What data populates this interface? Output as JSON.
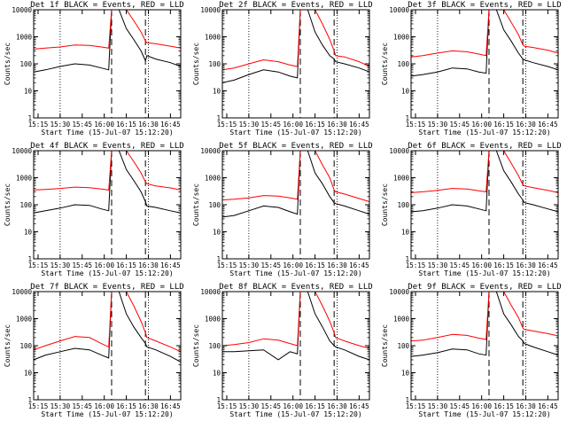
{
  "figure": {
    "title_template": "Det {n}f BLACK = Events, RED = LLD",
    "xlabel": "Start Time (15-Jul-07 15:12:20)",
    "ylabel": "Counts/sec",
    "colors": {
      "events": "#000000",
      "lld": "#ff0000",
      "axes": "#000000"
    }
  },
  "chart_data": [
    {
      "type": "line",
      "title": "Det 1f BLACK = Events, RED = LLD",
      "xlabel": "Start Time (15-Jul-07 15:12:20)",
      "ylabel": "Counts/sec",
      "yscale": "log",
      "ylim": [
        1,
        10000
      ],
      "xlim": [
        "15:12",
        "16:52"
      ],
      "xticks": [
        "15:15",
        "15:30",
        "15:45",
        "16:00",
        "16:15",
        "16:30",
        "16:45"
      ],
      "yticks": [
        "1",
        "10",
        "100",
        "1000",
        "10000"
      ],
      "dotted_lines": [
        "15:30",
        "16:30"
      ],
      "dashed_lines": [
        "16:05",
        "16:28"
      ],
      "x": [
        "15:12",
        "15:20",
        "15:30",
        "15:40",
        "15:50",
        "15:58",
        "16:03",
        "16:05",
        "16:07",
        "16:10",
        "16:15",
        "16:20",
        "16:25",
        "16:28",
        "16:29",
        "16:35",
        "16:45",
        "16:52"
      ],
      "series": [
        {
          "name": "BLACK = Events",
          "values": [
            50,
            60,
            80,
            100,
            90,
            70,
            60,
            10000,
            10000,
            10000,
            2000,
            800,
            300,
            130,
            200,
            150,
            110,
            80
          ]
        },
        {
          "name": "RED = LLD",
          "values": [
            350,
            380,
            420,
            500,
            480,
            420,
            380,
            10000,
            10000,
            10000,
            10000,
            4000,
            1500,
            700,
            600,
            550,
            450,
            380
          ]
        }
      ]
    },
    {
      "type": "line",
      "title": "Det 2f BLACK = Events, RED = LLD",
      "xlabel": "Start Time (15-Jul-07 15:12:20)",
      "ylabel": "Counts/sec",
      "yscale": "log",
      "ylim": [
        1,
        10000
      ],
      "xlim": [
        "15:12",
        "16:52"
      ],
      "xticks": [
        "15:15",
        "15:30",
        "15:45",
        "16:00",
        "16:15",
        "16:30",
        "16:45"
      ],
      "yticks": [
        "1",
        "10",
        "100",
        "1000",
        "10000"
      ],
      "dotted_lines": [
        "15:30",
        "16:30"
      ],
      "dashed_lines": [
        "16:05",
        "16:28"
      ],
      "x": [
        "15:12",
        "15:20",
        "15:30",
        "15:40",
        "15:50",
        "15:58",
        "16:03",
        "16:05",
        "16:07",
        "16:10",
        "16:15",
        "16:20",
        "16:25",
        "16:28",
        "16:29",
        "16:35",
        "16:45",
        "16:52"
      ],
      "series": [
        {
          "name": "BLACK = Events",
          "values": [
            20,
            25,
            40,
            60,
            50,
            35,
            30,
            10000,
            10000,
            10000,
            1500,
            500,
            200,
            150,
            120,
            100,
            70,
            50
          ]
        },
        {
          "name": "RED = LLD",
          "values": [
            60,
            70,
            100,
            140,
            120,
            90,
            80,
            10000,
            10000,
            10000,
            10000,
            3000,
            800,
            300,
            200,
            180,
            120,
            80
          ]
        }
      ]
    },
    {
      "type": "line",
      "title": "Det 3f BLACK = Events, RED = LLD",
      "xlabel": "Start Time (15-Jul-07 15:12:20)",
      "ylabel": "Counts/sec",
      "yscale": "log",
      "ylim": [
        1,
        10000
      ],
      "xlim": [
        "15:12",
        "16:52"
      ],
      "xticks": [
        "15:15",
        "15:30",
        "15:45",
        "16:00",
        "16:15",
        "16:30",
        "16:45"
      ],
      "yticks": [
        "1",
        "10",
        "100",
        "1000",
        "10000"
      ],
      "dotted_lines": [
        "15:30",
        "16:30"
      ],
      "dashed_lines": [
        "16:05",
        "16:28"
      ],
      "x": [
        "15:12",
        "15:20",
        "15:30",
        "15:40",
        "15:50",
        "15:58",
        "16:03",
        "16:05",
        "16:07",
        "16:10",
        "16:15",
        "16:20",
        "16:25",
        "16:28",
        "16:29",
        "16:35",
        "16:45",
        "16:52"
      ],
      "series": [
        {
          "name": "BLACK = Events",
          "values": [
            35,
            40,
            50,
            70,
            65,
            50,
            45,
            10000,
            10000,
            10000,
            1800,
            700,
            250,
            150,
            140,
            110,
            80,
            60
          ]
        },
        {
          "name": "RED = LLD",
          "values": [
            180,
            200,
            250,
            300,
            280,
            230,
            200,
            10000,
            10000,
            10000,
            10000,
            3500,
            1200,
            500,
            450,
            400,
            320,
            250
          ]
        }
      ]
    },
    {
      "type": "line",
      "title": "Det 4f BLACK = Events, RED = LLD",
      "xlabel": "Start Time (15-Jul-07 15:12:20)",
      "ylabel": "Counts/sec",
      "yscale": "log",
      "ylim": [
        1,
        10000
      ],
      "xlim": [
        "15:12",
        "16:52"
      ],
      "xticks": [
        "15:15",
        "15:30",
        "15:45",
        "16:00",
        "16:15",
        "16:30",
        "16:45"
      ],
      "yticks": [
        "1",
        "10",
        "100",
        "1000",
        "10000"
      ],
      "dotted_lines": [
        "15:30",
        "16:30"
      ],
      "dashed_lines": [
        "16:05",
        "16:28"
      ],
      "x": [
        "15:12",
        "15:20",
        "15:30",
        "15:40",
        "15:50",
        "15:58",
        "16:03",
        "16:05",
        "16:07",
        "16:10",
        "16:15",
        "16:20",
        "16:25",
        "16:28",
        "16:29",
        "16:35",
        "16:45",
        "16:52"
      ],
      "series": [
        {
          "name": "BLACK = Events",
          "values": [
            50,
            60,
            75,
            100,
            95,
            70,
            60,
            10000,
            10000,
            10000,
            2000,
            800,
            300,
            130,
            90,
            80,
            60,
            50
          ]
        },
        {
          "name": "RED = LLD",
          "values": [
            350,
            370,
            400,
            450,
            430,
            380,
            350,
            10000,
            10000,
            10000,
            10000,
            4000,
            1500,
            700,
            600,
            500,
            420,
            350
          ]
        }
      ]
    },
    {
      "type": "line",
      "title": "Det 5f BLACK = Events, RED = LLD",
      "xlabel": "Start Time (15-Jul-07 15:12:20)",
      "ylabel": "Counts/sec",
      "yscale": "log",
      "ylim": [
        1,
        10000
      ],
      "xlim": [
        "15:12",
        "16:52"
      ],
      "xticks": [
        "15:15",
        "15:30",
        "15:45",
        "16:00",
        "16:15",
        "16:30",
        "16:45"
      ],
      "yticks": [
        "1",
        "10",
        "100",
        "1000",
        "10000"
      ],
      "dotted_lines": [
        "15:30",
        "16:30"
      ],
      "dashed_lines": [
        "16:05",
        "16:28"
      ],
      "x": [
        "15:12",
        "15:20",
        "15:30",
        "15:40",
        "15:50",
        "15:58",
        "16:03",
        "16:05",
        "16:07",
        "16:10",
        "16:15",
        "16:20",
        "16:25",
        "16:28",
        "16:29",
        "16:35",
        "16:45",
        "16:52"
      ],
      "series": [
        {
          "name": "BLACK = Events",
          "values": [
            35,
            40,
            60,
            90,
            80,
            55,
            45,
            10000,
            10000,
            10000,
            1500,
            600,
            200,
            120,
            110,
            90,
            60,
            45
          ]
        },
        {
          "name": "RED = LLD",
          "values": [
            150,
            160,
            180,
            220,
            210,
            180,
            160,
            10000,
            10000,
            10000,
            10000,
            3000,
            1000,
            350,
            300,
            250,
            170,
            130
          ]
        }
      ]
    },
    {
      "type": "line",
      "title": "Det 6f BLACK = Events, RED = LLD",
      "xlabel": "Start Time (15-Jul-07 15:12:20)",
      "ylabel": "Counts/sec",
      "yscale": "log",
      "ylim": [
        1,
        10000
      ],
      "xlim": [
        "15:12",
        "16:52"
      ],
      "xticks": [
        "15:15",
        "15:30",
        "15:45",
        "16:00",
        "16:15",
        "16:30",
        "16:45"
      ],
      "yticks": [
        "1",
        "10",
        "100",
        "1000",
        "10000"
      ],
      "dotted_lines": [
        "15:30",
        "16:30"
      ],
      "dashed_lines": [
        "16:05",
        "16:28"
      ],
      "x": [
        "15:12",
        "15:20",
        "15:30",
        "15:40",
        "15:50",
        "15:58",
        "16:03",
        "16:05",
        "16:07",
        "16:10",
        "16:15",
        "16:20",
        "16:25",
        "16:28",
        "16:29",
        "16:35",
        "16:45",
        "16:52"
      ],
      "series": [
        {
          "name": "BLACK = Events",
          "values": [
            55,
            60,
            75,
            100,
            90,
            70,
            60,
            10000,
            10000,
            10000,
            1800,
            700,
            250,
            150,
            120,
            100,
            70,
            55
          ]
        },
        {
          "name": "RED = LLD",
          "values": [
            280,
            300,
            340,
            400,
            380,
            330,
            300,
            10000,
            10000,
            10000,
            10000,
            3500,
            1200,
            550,
            500,
            430,
            340,
            280
          ]
        }
      ]
    },
    {
      "type": "line",
      "title": "Det 7f BLACK = Events, RED = LLD",
      "xlabel": "Start Time (15-Jul-07 15:12:20)",
      "ylabel": "Counts/sec",
      "yscale": "log",
      "ylim": [
        1,
        10000
      ],
      "xlim": [
        "15:12",
        "16:52"
      ],
      "xticks": [
        "15:15",
        "15:30",
        "15:45",
        "16:00",
        "16:15",
        "16:30",
        "16:45"
      ],
      "yticks": [
        "1",
        "10",
        "100",
        "1000",
        "10000"
      ],
      "dotted_lines": [
        "15:30",
        "16:30"
      ],
      "dashed_lines": [
        "16:05",
        "16:28"
      ],
      "x": [
        "15:12",
        "15:20",
        "15:30",
        "15:40",
        "15:50",
        "15:58",
        "16:03",
        "16:05",
        "16:07",
        "16:10",
        "16:15",
        "16:20",
        "16:25",
        "16:28",
        "16:29",
        "16:35",
        "16:45",
        "16:52"
      ],
      "series": [
        {
          "name": "BLACK = Events",
          "values": [
            30,
            45,
            60,
            80,
            70,
            45,
            35,
            10000,
            10000,
            10000,
            1500,
            500,
            200,
            120,
            90,
            70,
            40,
            25
          ]
        },
        {
          "name": "RED = LLD",
          "values": [
            70,
            100,
            150,
            220,
            200,
            120,
            90,
            10000,
            10000,
            10000,
            10000,
            3000,
            800,
            300,
            200,
            150,
            90,
            60
          ]
        }
      ]
    },
    {
      "type": "line",
      "title": "Det 8f BLACK = Events, RED = LLD",
      "xlabel": "Start Time (15-Jul-07 15:12:20)",
      "ylabel": "Counts/sec",
      "yscale": "log",
      "ylim": [
        1,
        10000
      ],
      "xlim": [
        "15:12",
        "16:52"
      ],
      "xticks": [
        "15:15",
        "15:30",
        "15:45",
        "16:00",
        "16:15",
        "16:30",
        "16:45"
      ],
      "yticks": [
        "1",
        "10",
        "100",
        "1000",
        "10000"
      ],
      "dotted_lines": [
        "15:30",
        "16:30"
      ],
      "dashed_lines": [
        "16:05",
        "16:28"
      ],
      "x": [
        "15:12",
        "15:20",
        "15:30",
        "15:40",
        "15:50",
        "15:58",
        "16:03",
        "16:05",
        "16:07",
        "16:10",
        "16:15",
        "16:20",
        "16:25",
        "16:28",
        "16:29",
        "16:35",
        "16:45",
        "16:52"
      ],
      "series": [
        {
          "name": "BLACK = Events",
          "values": [
            60,
            60,
            65,
            70,
            30,
            60,
            50,
            10000,
            10000,
            10000,
            1500,
            500,
            150,
            100,
            90,
            70,
            40,
            30
          ]
        },
        {
          "name": "RED = LLD",
          "values": [
            100,
            110,
            130,
            180,
            160,
            120,
            100,
            10000,
            10000,
            10000,
            10000,
            3000,
            800,
            300,
            200,
            150,
            100,
            80
          ]
        }
      ]
    },
    {
      "type": "line",
      "title": "Det 9f BLACK = Events, RED = LLD",
      "xlabel": "Start Time (15-Jul-07 15:12:20)",
      "ylabel": "Counts/sec",
      "yscale": "log",
      "ylim": [
        1,
        10000
      ],
      "xlim": [
        "15:12",
        "16:52"
      ],
      "xticks": [
        "15:15",
        "15:30",
        "15:45",
        "16:00",
        "16:15",
        "16:30",
        "16:45"
      ],
      "yticks": [
        "1",
        "10",
        "100",
        "1000",
        "10000"
      ],
      "dotted_lines": [
        "15:30",
        "16:30"
      ],
      "dashed_lines": [
        "16:05",
        "16:28"
      ],
      "x": [
        "15:12",
        "15:20",
        "15:30",
        "15:40",
        "15:50",
        "15:58",
        "16:03",
        "16:05",
        "16:07",
        "16:10",
        "16:15",
        "16:20",
        "16:25",
        "16:28",
        "16:29",
        "16:35",
        "16:45",
        "16:52"
      ],
      "series": [
        {
          "name": "BLACK = Events",
          "values": [
            40,
            45,
            55,
            75,
            70,
            50,
            45,
            10000,
            10000,
            10000,
            1500,
            600,
            220,
            150,
            120,
            90,
            60,
            45
          ]
        },
        {
          "name": "RED = LLD",
          "values": [
            150,
            160,
            200,
            260,
            240,
            190,
            170,
            10000,
            10000,
            10000,
            10000,
            3200,
            1100,
            450,
            400,
            350,
            280,
            230
          ]
        }
      ]
    }
  ]
}
